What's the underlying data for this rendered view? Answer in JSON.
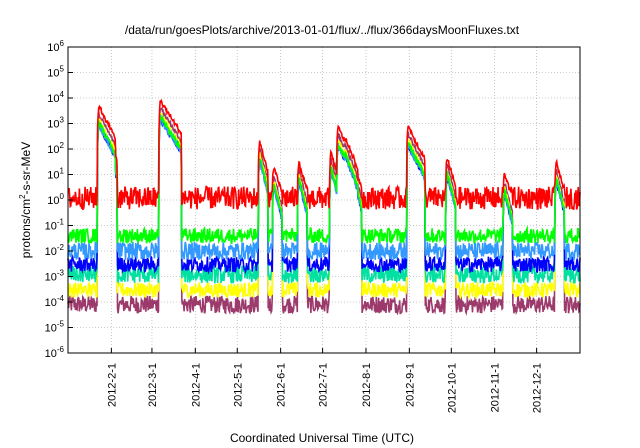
{
  "chart_data": {
    "type": "line",
    "title": "/data/run/goesPlots/archive/2013-01-01/flux/../flux/366daysMoonFluxes.txt",
    "xlabel": "Coordinated Universal Time (UTC)",
    "ylabel_parts": {
      "before": "protons/cm",
      "sup": "2",
      "after": "-s-sr-MeV"
    },
    "yscale": "log",
    "ylim": [
      1e-06,
      1000000.0
    ],
    "y_tick_exponents": [
      -6,
      -5,
      -4,
      -3,
      -2,
      -1,
      0,
      1,
      2,
      3,
      4,
      5,
      6
    ],
    "y_tick_base": "10",
    "xlim": [
      "2012-01-01",
      "2013-01-01"
    ],
    "x_ticks": [
      {
        "label": "2012-2-1",
        "date": "2012-02-01"
      },
      {
        "label": "2012-3-1",
        "date": "2012-03-01"
      },
      {
        "label": "2012-4-1",
        "date": "2012-04-01"
      },
      {
        "label": "2012-5-1",
        "date": "2012-05-01"
      },
      {
        "label": "2012-6-1",
        "date": "2012-06-01"
      },
      {
        "label": "2012-7-1",
        "date": "2012-07-01"
      },
      {
        "label": "2012-8-1",
        "date": "2012-08-01"
      },
      {
        "label": "2012-9-1",
        "date": "2012-09-01"
      },
      {
        "label": "2012-10-1",
        "date": "2012-10-01"
      },
      {
        "label": "2012-11-1",
        "date": "2012-11-01"
      },
      {
        "label": "2012-12-1",
        "date": "2012-12-01"
      }
    ],
    "grid": true,
    "legend": "none",
    "series": [
      {
        "color": "#9b3a6b",
        "baseline": 8e-05,
        "spread": 0.35
      },
      {
        "color": "#ffff00",
        "baseline": 0.0003,
        "spread": 0.3
      },
      {
        "color": "#00e0a0",
        "baseline": 0.0012,
        "spread": 0.35
      },
      {
        "color": "#0000ff",
        "baseline": 0.003,
        "spread": 0.3
      },
      {
        "color": "#3399ff",
        "baseline": 0.01,
        "spread": 0.35
      },
      {
        "color": "#00ff00",
        "baseline": 0.04,
        "spread": 0.3
      },
      {
        "color": "#ff0000",
        "baseline": 1.2,
        "spread": 0.45
      }
    ],
    "events": [
      {
        "date": "2012-01-23",
        "peak_red": 5000,
        "width_days": 4
      },
      {
        "date": "2012-01-27",
        "peak_red": 800,
        "width_days": 3
      },
      {
        "date": "2012-03-07",
        "peak_red": 8000,
        "width_days": 5
      },
      {
        "date": "2012-03-13",
        "peak_red": 1500,
        "width_days": 3
      },
      {
        "date": "2012-05-17",
        "peak_red": 200,
        "width_days": 2
      },
      {
        "date": "2012-05-27",
        "peak_red": 20,
        "width_days": 2
      },
      {
        "date": "2012-06-14",
        "peak_red": 30,
        "width_days": 2
      },
      {
        "date": "2012-07-07",
        "peak_red": 80,
        "width_days": 2
      },
      {
        "date": "2012-07-12",
        "peak_red": 700,
        "width_days": 4
      },
      {
        "date": "2012-07-17",
        "peak_red": 300,
        "width_days": 3
      },
      {
        "date": "2012-07-23",
        "peak_red": 40,
        "width_days": 2
      },
      {
        "date": "2012-08-31",
        "peak_red": 800,
        "width_days": 4
      },
      {
        "date": "2012-09-28",
        "peak_red": 50,
        "width_days": 2
      },
      {
        "date": "2012-11-08",
        "peak_red": 10,
        "width_days": 2
      },
      {
        "date": "2012-12-15",
        "peak_red": 30,
        "width_days": 2
      }
    ]
  }
}
